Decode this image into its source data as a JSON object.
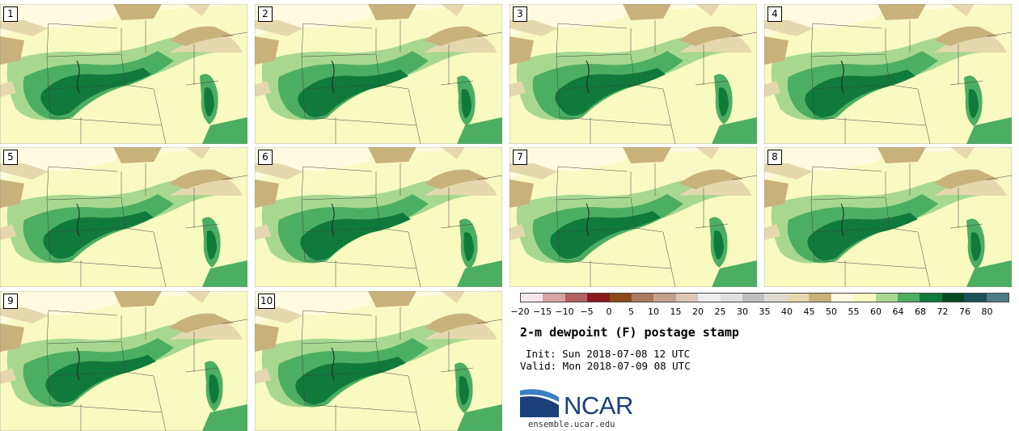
{
  "panels": [
    {
      "label": "1"
    },
    {
      "label": "2"
    },
    {
      "label": "3"
    },
    {
      "label": "4"
    },
    {
      "label": "5"
    },
    {
      "label": "6"
    },
    {
      "label": "7"
    },
    {
      "label": "8"
    },
    {
      "label": "9"
    },
    {
      "label": "10"
    }
  ],
  "colorbar": {
    "ticks": [
      "−20",
      "−15",
      "−10",
      "−5",
      "0",
      "5",
      "10",
      "15",
      "20",
      "25",
      "30",
      "35",
      "40",
      "45",
      "50",
      "55",
      "60",
      "64",
      "68",
      "72",
      "76",
      "80"
    ],
    "colors": [
      "#f6e8ea",
      "#d9a3a6",
      "#b26062",
      "#8a1a20",
      "#8a4a18",
      "#aa7a5e",
      "#c4a08e",
      "#dcc6b8",
      "#eeeeee",
      "#dfdfdf",
      "#c0c0c0",
      "#dedad0",
      "#e6d8ae",
      "#c9b27a",
      "#fffbe0",
      "#f8fac0",
      "#a8d890",
      "#4cae62",
      "#0f7a3a",
      "#004a22",
      "#1a5058",
      "#4c7c80"
    ]
  },
  "title": "2-m dewpoint (F) postage stamp",
  "init": "Init: Sun 2018-07-08 12 UTC",
  "valid": "Valid: Mon 2018-07-09 08 UTC",
  "logo": {
    "name": "NCAR",
    "url": "ensemble.ucar.edu",
    "colors": {
      "blue": "#1a3f7a",
      "swoosh": "#3a7fc0"
    }
  },
  "map_colors": {
    "lt_yellow": "#fffbe0",
    "yellow": "#f8fac0",
    "lt_green": "#a8d890",
    "med_green": "#4cae62",
    "dk_green": "#0f7a3a",
    "darkest_green": "#004a22",
    "tan": "#c9b27a",
    "lt_tan": "#e6d8ae",
    "gray": "#c0c0c0"
  }
}
